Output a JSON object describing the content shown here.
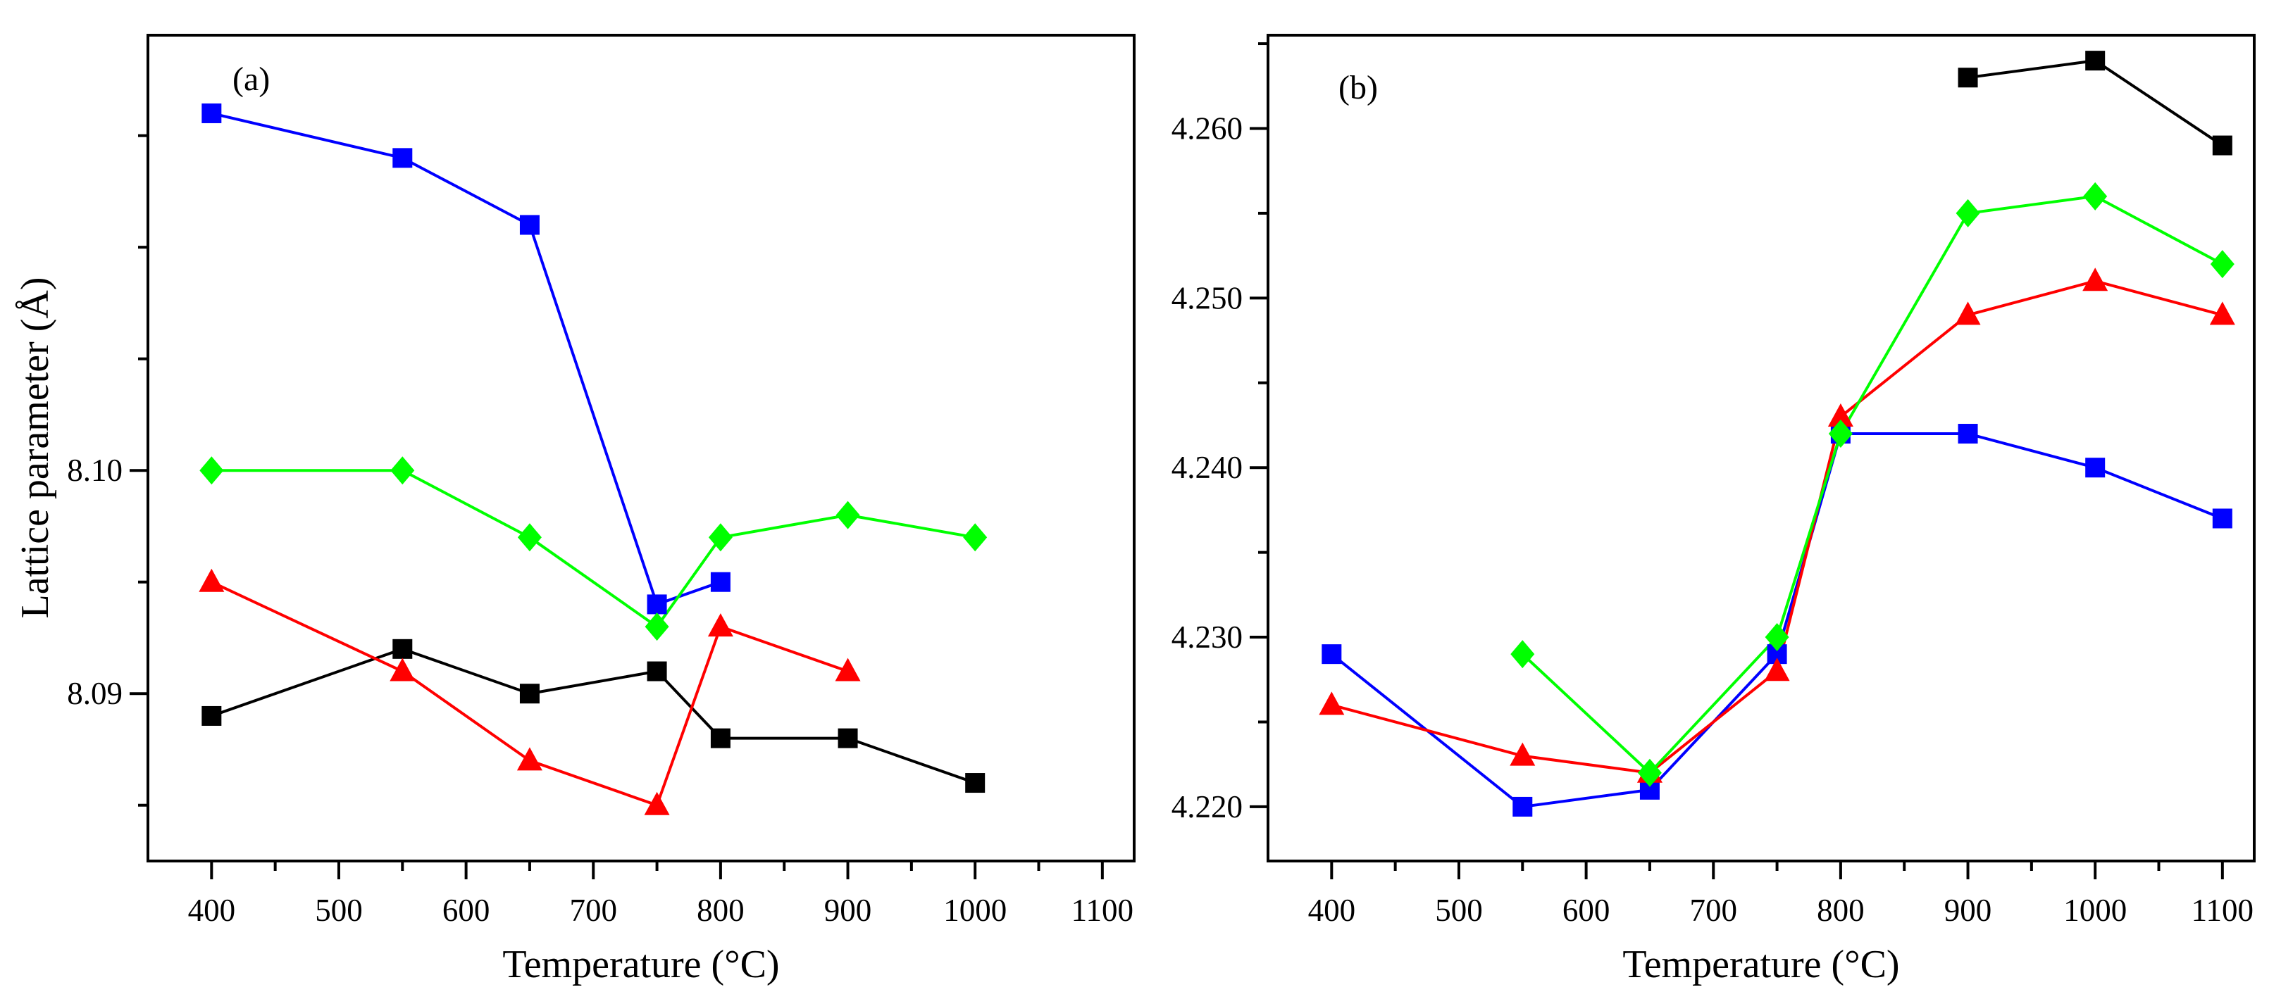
{
  "chart_data": [
    {
      "type": "line",
      "panel_label": "(a)",
      "xlabel": "Temperature (°C)",
      "ylabel": "Lattice parameter (Å)",
      "xlim": [
        350,
        1125
      ],
      "ylim": [
        8.0825,
        8.1195
      ],
      "xticks": [
        400,
        500,
        600,
        700,
        800,
        900,
        1000,
        1100
      ],
      "xtick_labels": [
        "400",
        "500",
        "600",
        "700",
        "800",
        "900",
        "1000",
        "1100"
      ],
      "yticks": [
        8.09,
        8.1
      ],
      "ytick_labels": [
        "8.09",
        "8.10"
      ],
      "series": [
        {
          "name": "black squares",
          "color": "#000000",
          "marker": "square",
          "x": [
            400,
            550,
            650,
            750,
            800,
            900,
            1000
          ],
          "values": [
            8.089,
            8.092,
            8.09,
            8.091,
            8.088,
            8.088,
            8.086
          ]
        },
        {
          "name": "blue squares",
          "color": "#0000ff",
          "marker": "square",
          "x": [
            400,
            550,
            650,
            750,
            800
          ],
          "values": [
            8.116,
            8.114,
            8.111,
            8.094,
            8.095
          ]
        },
        {
          "name": "red triangles",
          "color": "#ff0000",
          "marker": "triangle",
          "x": [
            400,
            550,
            650,
            750,
            800,
            900
          ],
          "values": [
            8.095,
            8.091,
            8.087,
            8.085,
            8.093,
            8.091
          ]
        },
        {
          "name": "green diamonds",
          "color": "#00ff00",
          "marker": "diamond",
          "x": [
            400,
            550,
            650,
            750,
            800,
            900,
            1000
          ],
          "values": [
            8.1,
            8.1,
            8.097,
            8.093,
            8.097,
            8.098,
            8.097
          ]
        }
      ]
    },
    {
      "type": "line",
      "panel_label": "(b)",
      "xlabel": "Temperature (°C)",
      "ylabel": "",
      "xlim": [
        350,
        1125
      ],
      "ylim": [
        4.2168,
        4.2655
      ],
      "xticks": [
        400,
        500,
        600,
        700,
        800,
        900,
        1000,
        1100
      ],
      "xtick_labels": [
        "400",
        "500",
        "600",
        "700",
        "800",
        "900",
        "1000",
        "1100"
      ],
      "yticks": [
        4.22,
        4.23,
        4.24,
        4.25,
        4.26
      ],
      "ytick_labels": [
        "4.220",
        "4.230",
        "4.240",
        "4.250",
        "4.260"
      ],
      "series": [
        {
          "name": "black squares",
          "color": "#000000",
          "marker": "square",
          "x": [
            900,
            1000,
            1100
          ],
          "values": [
            4.263,
            4.264,
            4.259
          ]
        },
        {
          "name": "blue squares",
          "color": "#0000ff",
          "marker": "square",
          "x": [
            400,
            550,
            650,
            750,
            800,
            900,
            1000,
            1100
          ],
          "values": [
            4.229,
            4.22,
            4.221,
            4.229,
            4.242,
            4.242,
            4.24,
            4.237
          ]
        },
        {
          "name": "red triangles",
          "color": "#ff0000",
          "marker": "triangle",
          "x": [
            400,
            550,
            650,
            750,
            800,
            900,
            1000,
            1100
          ],
          "values": [
            4.226,
            4.223,
            4.222,
            4.228,
            4.243,
            4.249,
            4.251,
            4.249
          ]
        },
        {
          "name": "green diamonds",
          "color": "#00ff00",
          "marker": "diamond",
          "x": [
            550,
            650,
            750,
            800,
            900,
            1000,
            1100
          ],
          "values": [
            4.229,
            4.222,
            4.23,
            4.242,
            4.255,
            4.256,
            4.252
          ]
        }
      ]
    }
  ]
}
